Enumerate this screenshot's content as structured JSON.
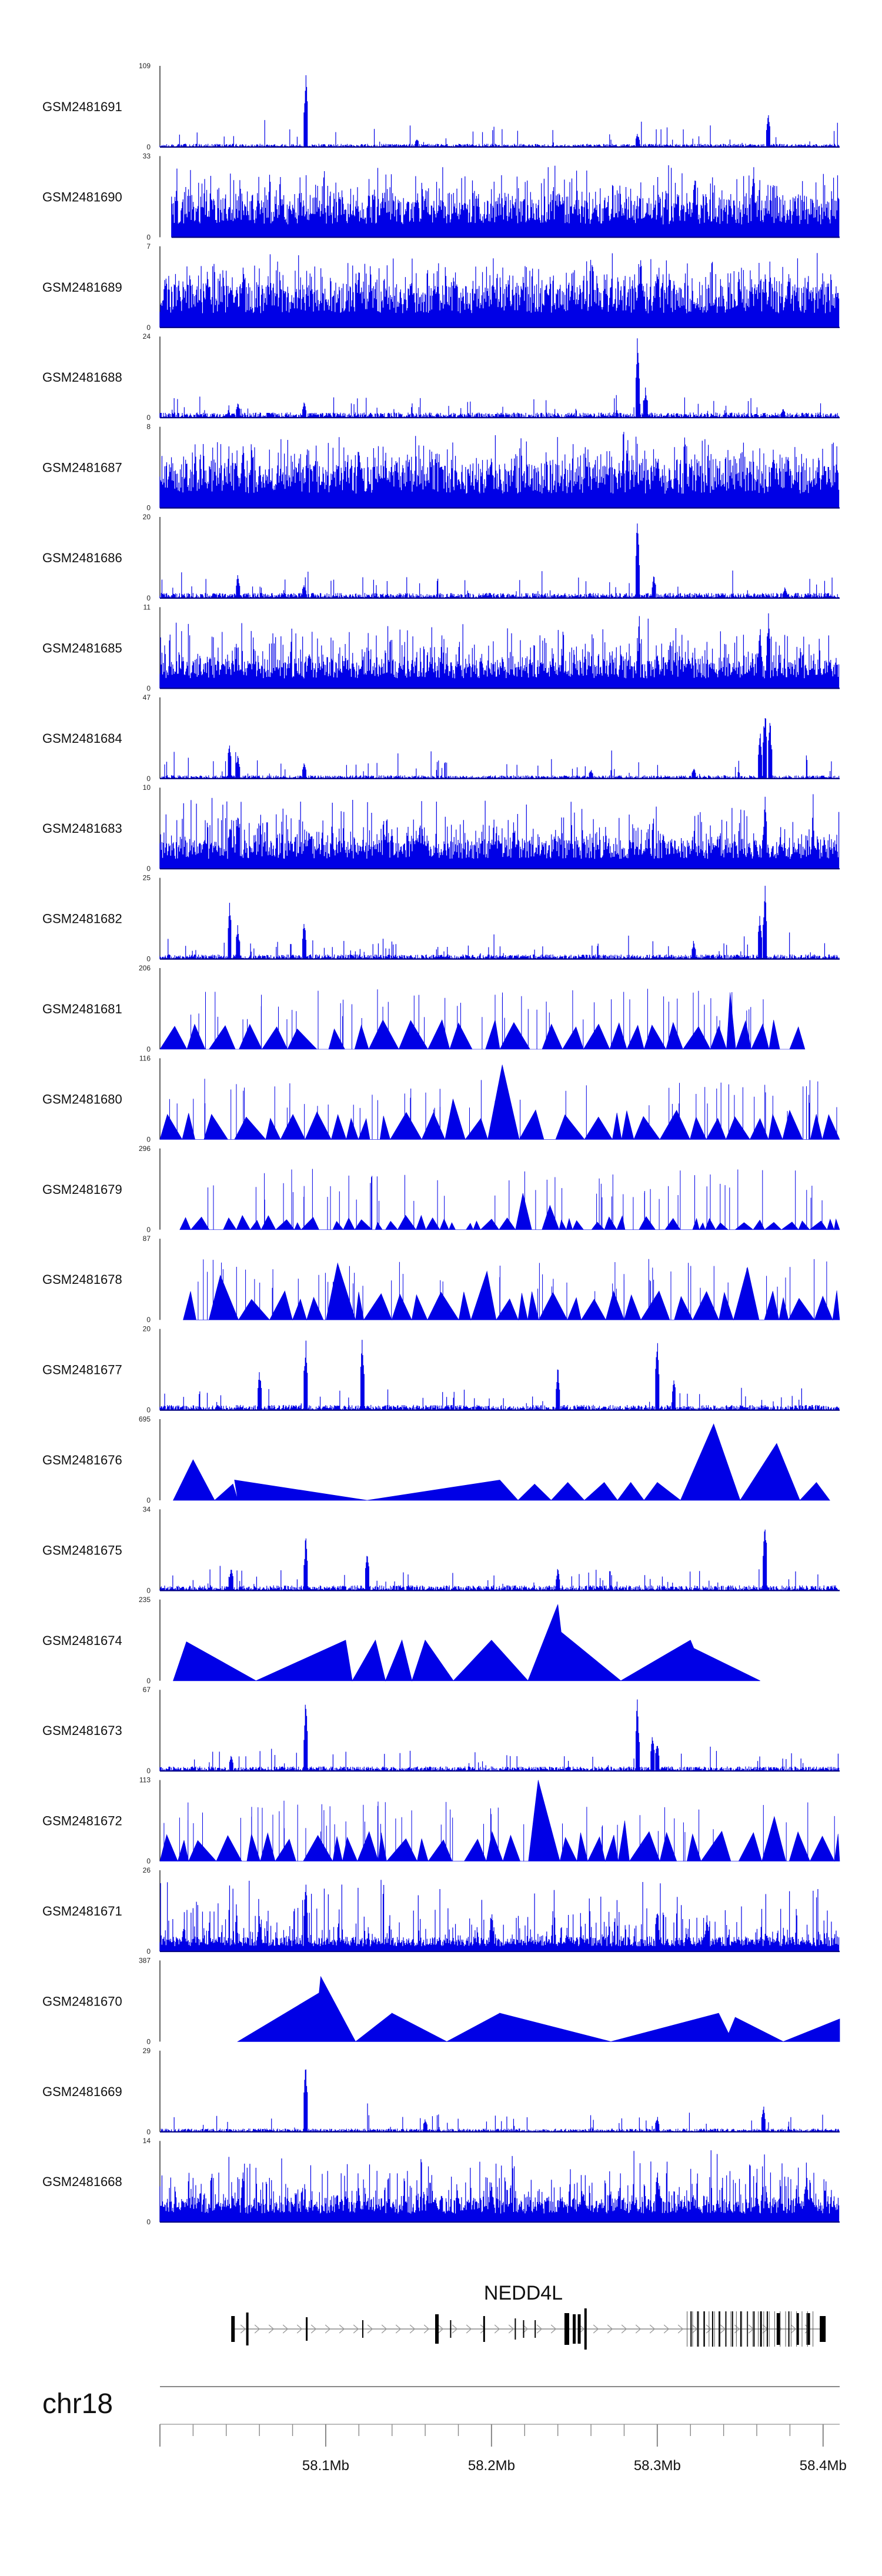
{
  "chart_data": {
    "type": "area",
    "title": "",
    "chromosome": "chr18",
    "region_mb": [
      58.0,
      58.41
    ],
    "x_ticks_mb": [
      "58.1Mb",
      "58.2Mb",
      "58.3Mb",
      "58.4Mb"
    ],
    "x_tick_values": [
      58.1,
      58.2,
      58.3,
      58.4
    ],
    "gene": {
      "name": "NEDD4L",
      "start": 58.043,
      "end": 58.4,
      "direction": "+"
    },
    "track_color": "#0000e6",
    "tracks": [
      {
        "name": "GSM2481691",
        "ymax": "109",
        "ymin": "0",
        "style": "spiky",
        "density": 0.35,
        "base": 0.05,
        "peaks": [
          [
            58.088,
            1.0
          ],
          [
            58.288,
            0.18
          ],
          [
            58.367,
            0.42
          ],
          [
            58.155,
            0.12
          ]
        ]
      },
      {
        "name": "GSM2481690",
        "ymax": "33",
        "ymin": "0",
        "style": "dense",
        "density": 0.9,
        "base": 0.45,
        "start": 58.007,
        "peaks": [
          [
            58.358,
            0.95
          ],
          [
            58.305,
            0.65
          ],
          [
            58.16,
            0.55
          ],
          [
            58.25,
            0.45
          ]
        ]
      },
      {
        "name": "GSM2481689",
        "ymax": "7",
        "ymin": "0",
        "style": "dense",
        "density": 0.9,
        "base": 0.5,
        "peaks": [
          [
            58.29,
            1.0
          ],
          [
            58.3,
            0.9
          ],
          [
            58.12,
            0.75
          ],
          [
            58.05,
            0.8
          ]
        ]
      },
      {
        "name": "GSM2481688",
        "ymax": "24",
        "ymin": "0",
        "style": "spiky",
        "density": 0.45,
        "base": 0.08,
        "peaks": [
          [
            58.288,
            1.0
          ],
          [
            58.293,
            0.4
          ],
          [
            58.047,
            0.22
          ],
          [
            58.087,
            0.2
          ],
          [
            58.376,
            0.12
          ]
        ]
      },
      {
        "name": "GSM2481687",
        "ymax": "8",
        "ymin": "0",
        "style": "dense",
        "density": 0.9,
        "base": 0.5,
        "peaks": [
          [
            58.05,
            0.95
          ],
          [
            58.12,
            0.85
          ],
          [
            58.37,
            0.9
          ],
          [
            58.2,
            0.7
          ]
        ]
      },
      {
        "name": "GSM2481686",
        "ymax": "20",
        "ymin": "0",
        "style": "spiky",
        "density": 0.45,
        "base": 0.08,
        "peaks": [
          [
            58.288,
            1.0
          ],
          [
            58.298,
            0.3
          ],
          [
            58.047,
            0.3
          ],
          [
            58.087,
            0.2
          ],
          [
            58.377,
            0.15
          ]
        ]
      },
      {
        "name": "GSM2481685",
        "ymax": "11",
        "ymin": "0",
        "style": "dense",
        "density": 0.85,
        "base": 0.35,
        "peaks": [
          [
            58.367,
            1.0
          ],
          [
            58.362,
            0.8
          ],
          [
            58.09,
            0.55
          ],
          [
            58.3,
            0.5
          ]
        ]
      },
      {
        "name": "GSM2481684",
        "ymax": "47",
        "ymin": "0",
        "style": "spiky",
        "density": 0.35,
        "base": 0.05,
        "peaks": [
          [
            58.042,
            0.48
          ],
          [
            58.047,
            0.32
          ],
          [
            58.087,
            0.22
          ],
          [
            58.362,
            0.62
          ],
          [
            58.365,
            0.95
          ],
          [
            58.368,
            0.78
          ],
          [
            58.26,
            0.12
          ],
          [
            58.322,
            0.15
          ]
        ]
      },
      {
        "name": "GSM2481683",
        "ymax": "10",
        "ymin": "0",
        "style": "dense",
        "density": 0.85,
        "base": 0.35,
        "peaks": [
          [
            58.047,
            0.75
          ],
          [
            58.042,
            0.6
          ],
          [
            58.365,
            0.95
          ],
          [
            58.09,
            0.55
          ]
        ]
      },
      {
        "name": "GSM2481682",
        "ymax": "25",
        "ymin": "0",
        "style": "spiky",
        "density": 0.4,
        "base": 0.07,
        "peaks": [
          [
            58.042,
            0.75
          ],
          [
            58.047,
            0.45
          ],
          [
            58.087,
            0.52
          ],
          [
            58.365,
            0.95
          ],
          [
            58.362,
            0.6
          ],
          [
            58.322,
            0.25
          ]
        ]
      },
      {
        "name": "GSM2481681",
        "ymax": "206",
        "ymin": "0",
        "style": "triangles",
        "seed": 11,
        "start": 58.0,
        "end": 58.39,
        "peaks": [
          [
            58.0,
            0.9
          ],
          [
            58.095,
            0.75
          ],
          [
            58.345,
            0.7
          ],
          [
            58.045,
            0.4
          ],
          [
            58.13,
            0.35
          ],
          [
            58.2,
            0.35
          ]
        ]
      },
      {
        "name": "GSM2481680",
        "ymax": "116",
        "ymin": "0",
        "style": "triangles",
        "seed": 7,
        "start": 58.0,
        "end": 58.41,
        "peaks": [
          [
            58.203,
            0.92
          ],
          [
            58.045,
            0.6
          ],
          [
            58.14,
            0.55
          ],
          [
            58.33,
            0.55
          ],
          [
            58.18,
            0.5
          ]
        ]
      },
      {
        "name": "GSM2481679",
        "ymax": "296",
        "ymin": "0",
        "style": "triangles_small",
        "seed": 3,
        "start": 58.012,
        "end": 58.41,
        "peaks": [
          [
            58.088,
            0.95
          ],
          [
            58.072,
            0.45
          ],
          [
            58.222,
            0.45
          ],
          [
            58.233,
            0.3
          ],
          [
            58.3,
            0.25
          ]
        ]
      },
      {
        "name": "GSM2481678",
        "ymax": "87",
        "ymin": "0",
        "style": "triangles",
        "seed": 19,
        "start": 58.014,
        "end": 58.41,
        "peaks": [
          [
            58.32,
            1.0
          ],
          [
            58.11,
            0.7
          ],
          [
            58.2,
            0.6
          ],
          [
            58.355,
            0.65
          ],
          [
            58.04,
            0.55
          ]
        ]
      },
      {
        "name": "GSM2481677",
        "ymax": "20",
        "ymin": "0",
        "style": "spiky",
        "density": 0.45,
        "base": 0.08,
        "peaks": [
          [
            58.088,
            0.92
          ],
          [
            58.122,
            0.9
          ],
          [
            58.3,
            0.95
          ],
          [
            58.24,
            0.55
          ],
          [
            58.06,
            0.55
          ],
          [
            58.31,
            0.45
          ]
        ]
      },
      {
        "name": "GSM2481676",
        "ymax": "695",
        "ymin": "0",
        "style": "polygon",
        "points": [
          [
            58.008,
            0.0
          ],
          [
            58.02,
            0.5
          ],
          [
            58.033,
            0.0
          ],
          [
            58.044,
            0.2
          ],
          [
            58.047,
            0.0
          ],
          [
            58.045,
            0.25
          ],
          [
            58.125,
            0.0
          ],
          [
            58.205,
            0.25
          ],
          [
            58.216,
            0.0
          ],
          [
            58.226,
            0.2
          ],
          [
            58.236,
            0.0
          ],
          [
            58.246,
            0.22
          ],
          [
            58.256,
            0.0
          ],
          [
            58.268,
            0.22
          ],
          [
            58.276,
            0.0
          ],
          [
            58.284,
            0.22
          ],
          [
            58.292,
            0.0
          ],
          [
            58.3,
            0.22
          ],
          [
            58.314,
            0.0
          ],
          [
            58.334,
            0.94
          ],
          [
            58.35,
            0.0
          ],
          [
            58.372,
            0.7
          ],
          [
            58.386,
            0.0
          ],
          [
            58.396,
            0.22
          ],
          [
            58.404,
            0.0
          ]
        ]
      },
      {
        "name": "GSM2481675",
        "ymax": "34",
        "ymin": "0",
        "style": "spiky",
        "density": 0.45,
        "base": 0.08,
        "peaks": [
          [
            58.365,
            0.95
          ],
          [
            58.088,
            0.72
          ],
          [
            58.125,
            0.5
          ],
          [
            58.043,
            0.35
          ],
          [
            58.24,
            0.3
          ]
        ]
      },
      {
        "name": "GSM2481674",
        "ymax": "235",
        "ymin": "0",
        "style": "polygon",
        "points": [
          [
            58.008,
            0.0
          ],
          [
            58.016,
            0.48
          ],
          [
            58.058,
            0.0
          ],
          [
            58.112,
            0.5
          ],
          [
            58.116,
            0.0
          ],
          [
            58.13,
            0.5
          ],
          [
            58.136,
            0.0
          ],
          [
            58.146,
            0.5
          ],
          [
            58.152,
            0.0
          ],
          [
            58.16,
            0.5
          ],
          [
            58.177,
            0.0
          ],
          [
            58.2,
            0.5
          ],
          [
            58.222,
            0.0
          ],
          [
            58.24,
            0.94
          ],
          [
            58.242,
            0.6
          ],
          [
            58.278,
            0.0
          ],
          [
            58.32,
            0.5
          ],
          [
            58.322,
            0.4
          ],
          [
            58.362,
            0.0
          ]
        ]
      },
      {
        "name": "GSM2481673",
        "ymax": "67",
        "ymin": "0",
        "style": "spiky",
        "density": 0.4,
        "base": 0.07,
        "peaks": [
          [
            58.088,
            0.95
          ],
          [
            58.288,
            0.92
          ],
          [
            58.297,
            0.5
          ],
          [
            58.3,
            0.4
          ],
          [
            58.043,
            0.2
          ]
        ]
      },
      {
        "name": "GSM2481672",
        "ymax": "113",
        "ymin": "0",
        "style": "triangles",
        "seed": 23,
        "start": 58.0,
        "end": 58.41,
        "peaks": [
          [
            58.232,
            1.0
          ],
          [
            58.26,
            0.6
          ],
          [
            58.3,
            0.55
          ],
          [
            58.37,
            0.55
          ],
          [
            58.28,
            0.5
          ]
        ]
      },
      {
        "name": "GSM2481671",
        "ymax": "26",
        "ymin": "0",
        "style": "dense",
        "density": 0.7,
        "base": 0.18,
        "peaks": [
          [
            58.088,
            0.95
          ],
          [
            58.2,
            0.55
          ],
          [
            58.3,
            0.6
          ],
          [
            58.33,
            0.5
          ],
          [
            58.06,
            0.45
          ]
        ]
      },
      {
        "name": "GSM2481670",
        "ymax": "387",
        "ymin": "0",
        "style": "polygon",
        "points": [
          [
            58.047,
            0.0
          ],
          [
            58.096,
            0.6
          ],
          [
            58.097,
            0.8
          ],
          [
            58.118,
            0.0
          ],
          [
            58.14,
            0.35
          ],
          [
            58.142,
            0.2
          ],
          [
            58.14,
            0.35
          ],
          [
            58.173,
            0.0
          ],
          [
            58.205,
            0.35
          ],
          [
            58.207,
            0.2
          ],
          [
            58.205,
            0.35
          ],
          [
            58.272,
            0.0
          ],
          [
            58.337,
            0.35
          ],
          [
            58.343,
            0.1
          ],
          [
            58.347,
            0.3
          ],
          [
            58.376,
            0.0
          ],
          [
            58.41,
            0.28
          ],
          [
            58.41,
            0.0
          ]
        ]
      },
      {
        "name": "GSM2481669",
        "ymax": "29",
        "ymin": "0",
        "style": "spiky",
        "density": 0.35,
        "base": 0.05,
        "peaks": [
          [
            58.088,
            0.92
          ],
          [
            58.364,
            0.35
          ],
          [
            58.16,
            0.18
          ],
          [
            58.3,
            0.2
          ]
        ]
      },
      {
        "name": "GSM2481668",
        "ymax": "14",
        "ymin": "0",
        "style": "dense",
        "density": 0.8,
        "base": 0.3,
        "peaks": [
          [
            58.05,
            0.7
          ],
          [
            58.3,
            0.75
          ],
          [
            58.39,
            0.65
          ],
          [
            58.2,
            0.55
          ]
        ]
      }
    ]
  }
}
